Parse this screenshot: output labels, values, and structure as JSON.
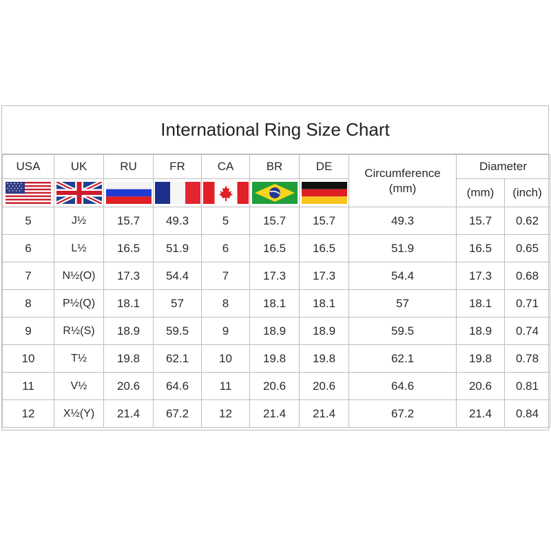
{
  "title": "International Ring Size Chart",
  "headers": {
    "usa": "USA",
    "uk": "UK",
    "ru": "RU",
    "fr": "FR",
    "ca": "CA",
    "br": "BR",
    "de": "DE",
    "circumference_line1": "Circumference",
    "circumference_line2": "(mm)",
    "diameter": "Diameter",
    "diameter_mm": "(mm)",
    "diameter_inch": "(inch)"
  },
  "flags": [
    "usa-flag-icon",
    "uk-flag-icon",
    "russia-flag-icon",
    "france-flag-icon",
    "canada-flag-icon",
    "brazil-flag-icon",
    "germany-flag-icon"
  ],
  "rows": [
    {
      "usa": "5",
      "uk": "J½",
      "ru": "15.7",
      "fr": "49.3",
      "ca": "5",
      "br": "15.7",
      "de": "15.7",
      "circ": "49.3",
      "dmm": "15.7",
      "dinch": "0.62"
    },
    {
      "usa": "6",
      "uk": "L½",
      "ru": "16.5",
      "fr": "51.9",
      "ca": "6",
      "br": "16.5",
      "de": "16.5",
      "circ": "51.9",
      "dmm": "16.5",
      "dinch": "0.65"
    },
    {
      "usa": "7",
      "uk": "N½(O)",
      "ru": "17.3",
      "fr": "54.4",
      "ca": "7",
      "br": "17.3",
      "de": "17.3",
      "circ": "54.4",
      "dmm": "17.3",
      "dinch": "0.68"
    },
    {
      "usa": "8",
      "uk": "P½(Q)",
      "ru": "18.1",
      "fr": "57",
      "ca": "8",
      "br": "18.1",
      "de": "18.1",
      "circ": "57",
      "dmm": "18.1",
      "dinch": "0.71"
    },
    {
      "usa": "9",
      "uk": "R½(S)",
      "ru": "18.9",
      "fr": "59.5",
      "ca": "9",
      "br": "18.9",
      "de": "18.9",
      "circ": "59.5",
      "dmm": "18.9",
      "dinch": "0.74"
    },
    {
      "usa": "10",
      "uk": "T½",
      "ru": "19.8",
      "fr": "62.1",
      "ca": "10",
      "br": "19.8",
      "de": "19.8",
      "circ": "62.1",
      "dmm": "19.8",
      "dinch": "0.78"
    },
    {
      "usa": "11",
      "uk": "V½",
      "ru": "20.6",
      "fr": "64.6",
      "ca": "11",
      "br": "20.6",
      "de": "20.6",
      "circ": "64.6",
      "dmm": "20.6",
      "dinch": "0.81"
    },
    {
      "usa": "12",
      "uk": "X½(Y)",
      "ru": "21.4",
      "fr": "67.2",
      "ca": "12",
      "br": "21.4",
      "de": "21.4",
      "circ": "67.2",
      "dmm": "21.4",
      "dinch": "0.84"
    }
  ]
}
